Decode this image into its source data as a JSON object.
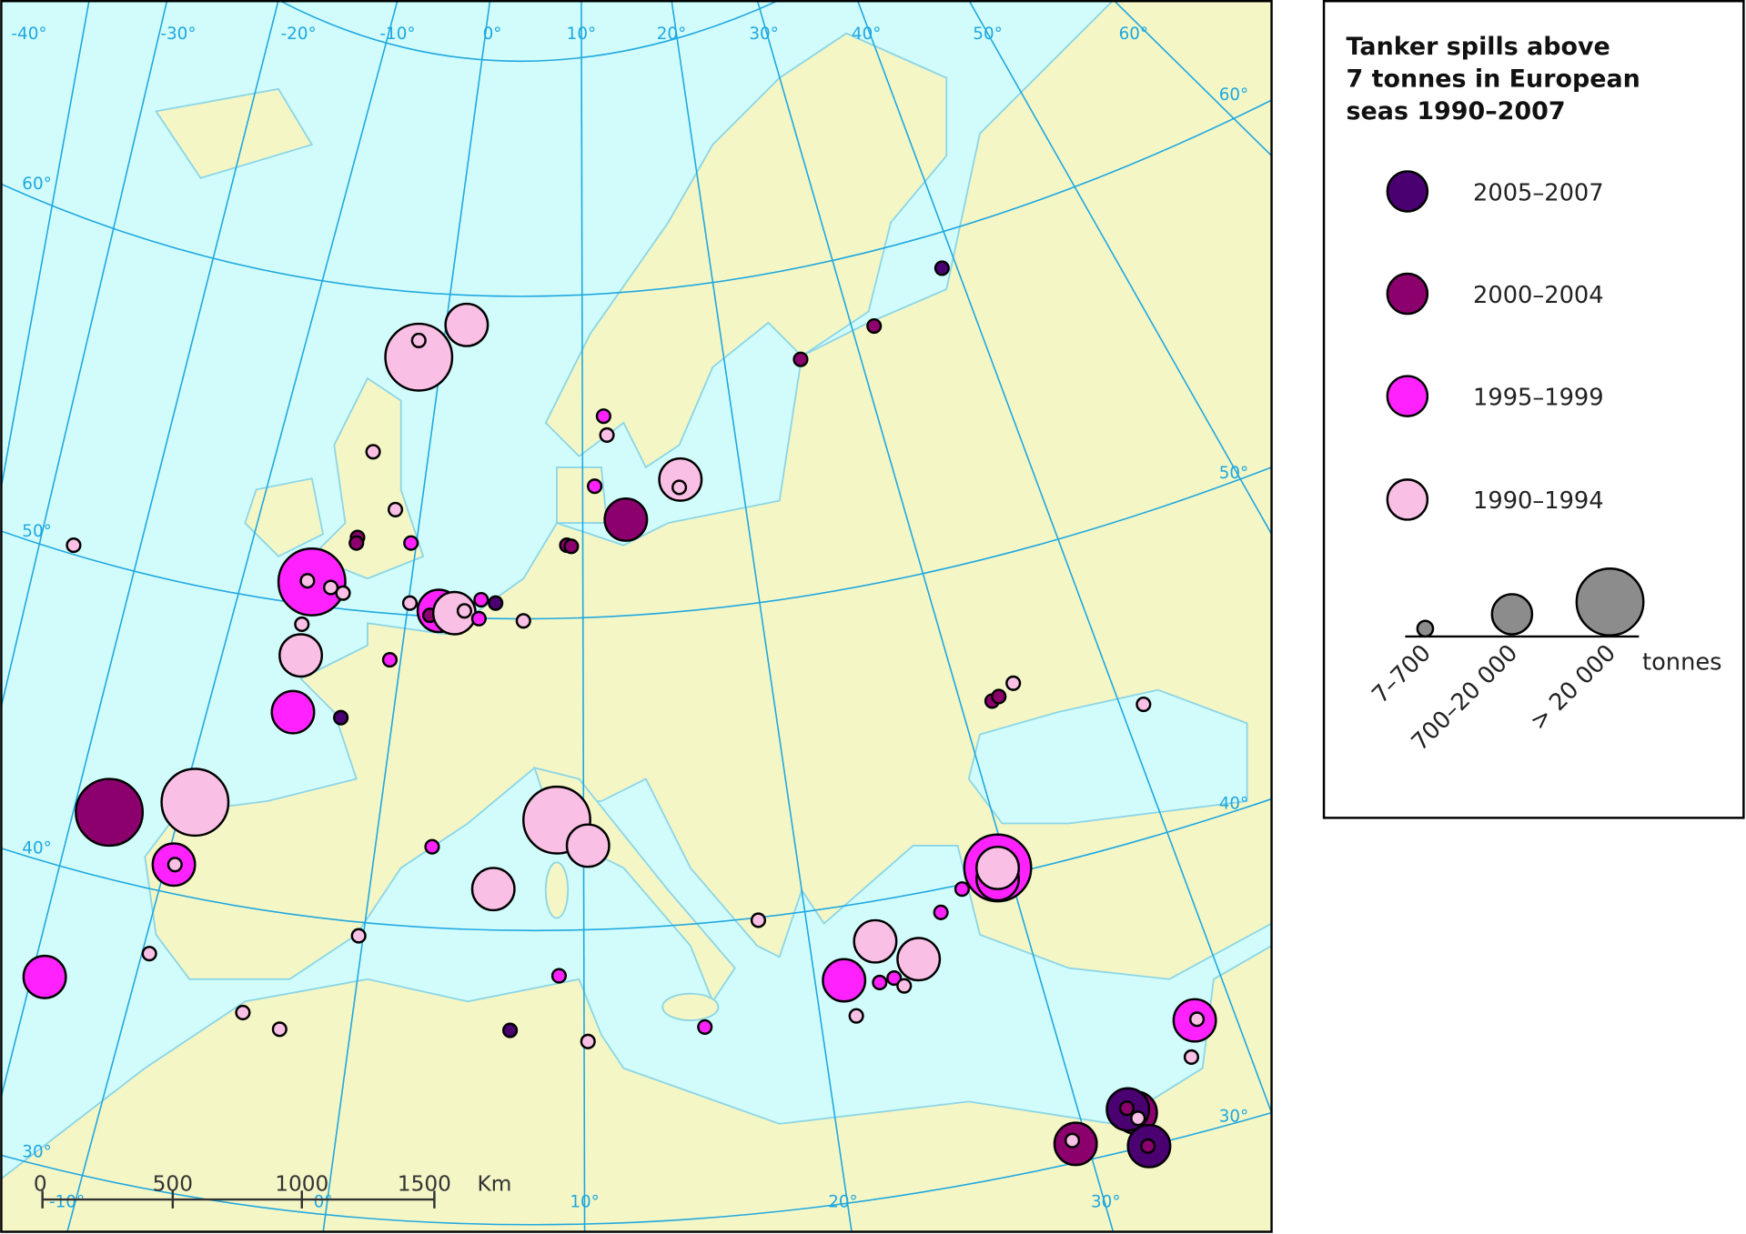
{
  "map": {
    "graticule_labels": {
      "top": [
        "-40°",
        "-30°",
        "-20°",
        "-10°",
        "0°",
        "10°",
        "20°",
        "30°",
        "40°",
        "50°",
        "60°"
      ],
      "left": [
        "60°",
        "50°",
        "40°",
        "30°"
      ],
      "right": [
        "60°",
        "50°",
        "40°",
        "30°"
      ],
      "bottom": [
        "-10°",
        "0°",
        "10°",
        "20°",
        "30°"
      ]
    },
    "scale_bar": [
      "0",
      "500",
      "1000",
      "1500",
      "Km"
    ]
  },
  "legend": {
    "title_lines": [
      "Tanker spills above",
      "7 tonnes in European",
      "seas 1990–2007"
    ],
    "periods": [
      {
        "label": "2005–2007",
        "color": "#4a0070"
      },
      {
        "label": "2000–2004",
        "color": "#8c006e"
      },
      {
        "label": "1995–1999",
        "color": "#ff22ff"
      },
      {
        "label": "1990–1994",
        "color": "#f9bfe4"
      }
    ],
    "sizes": [
      "7–700",
      "700–20 000",
      "> 20 000"
    ],
    "size_color": "#8c8c8c",
    "unit": "tonnes"
  }
}
